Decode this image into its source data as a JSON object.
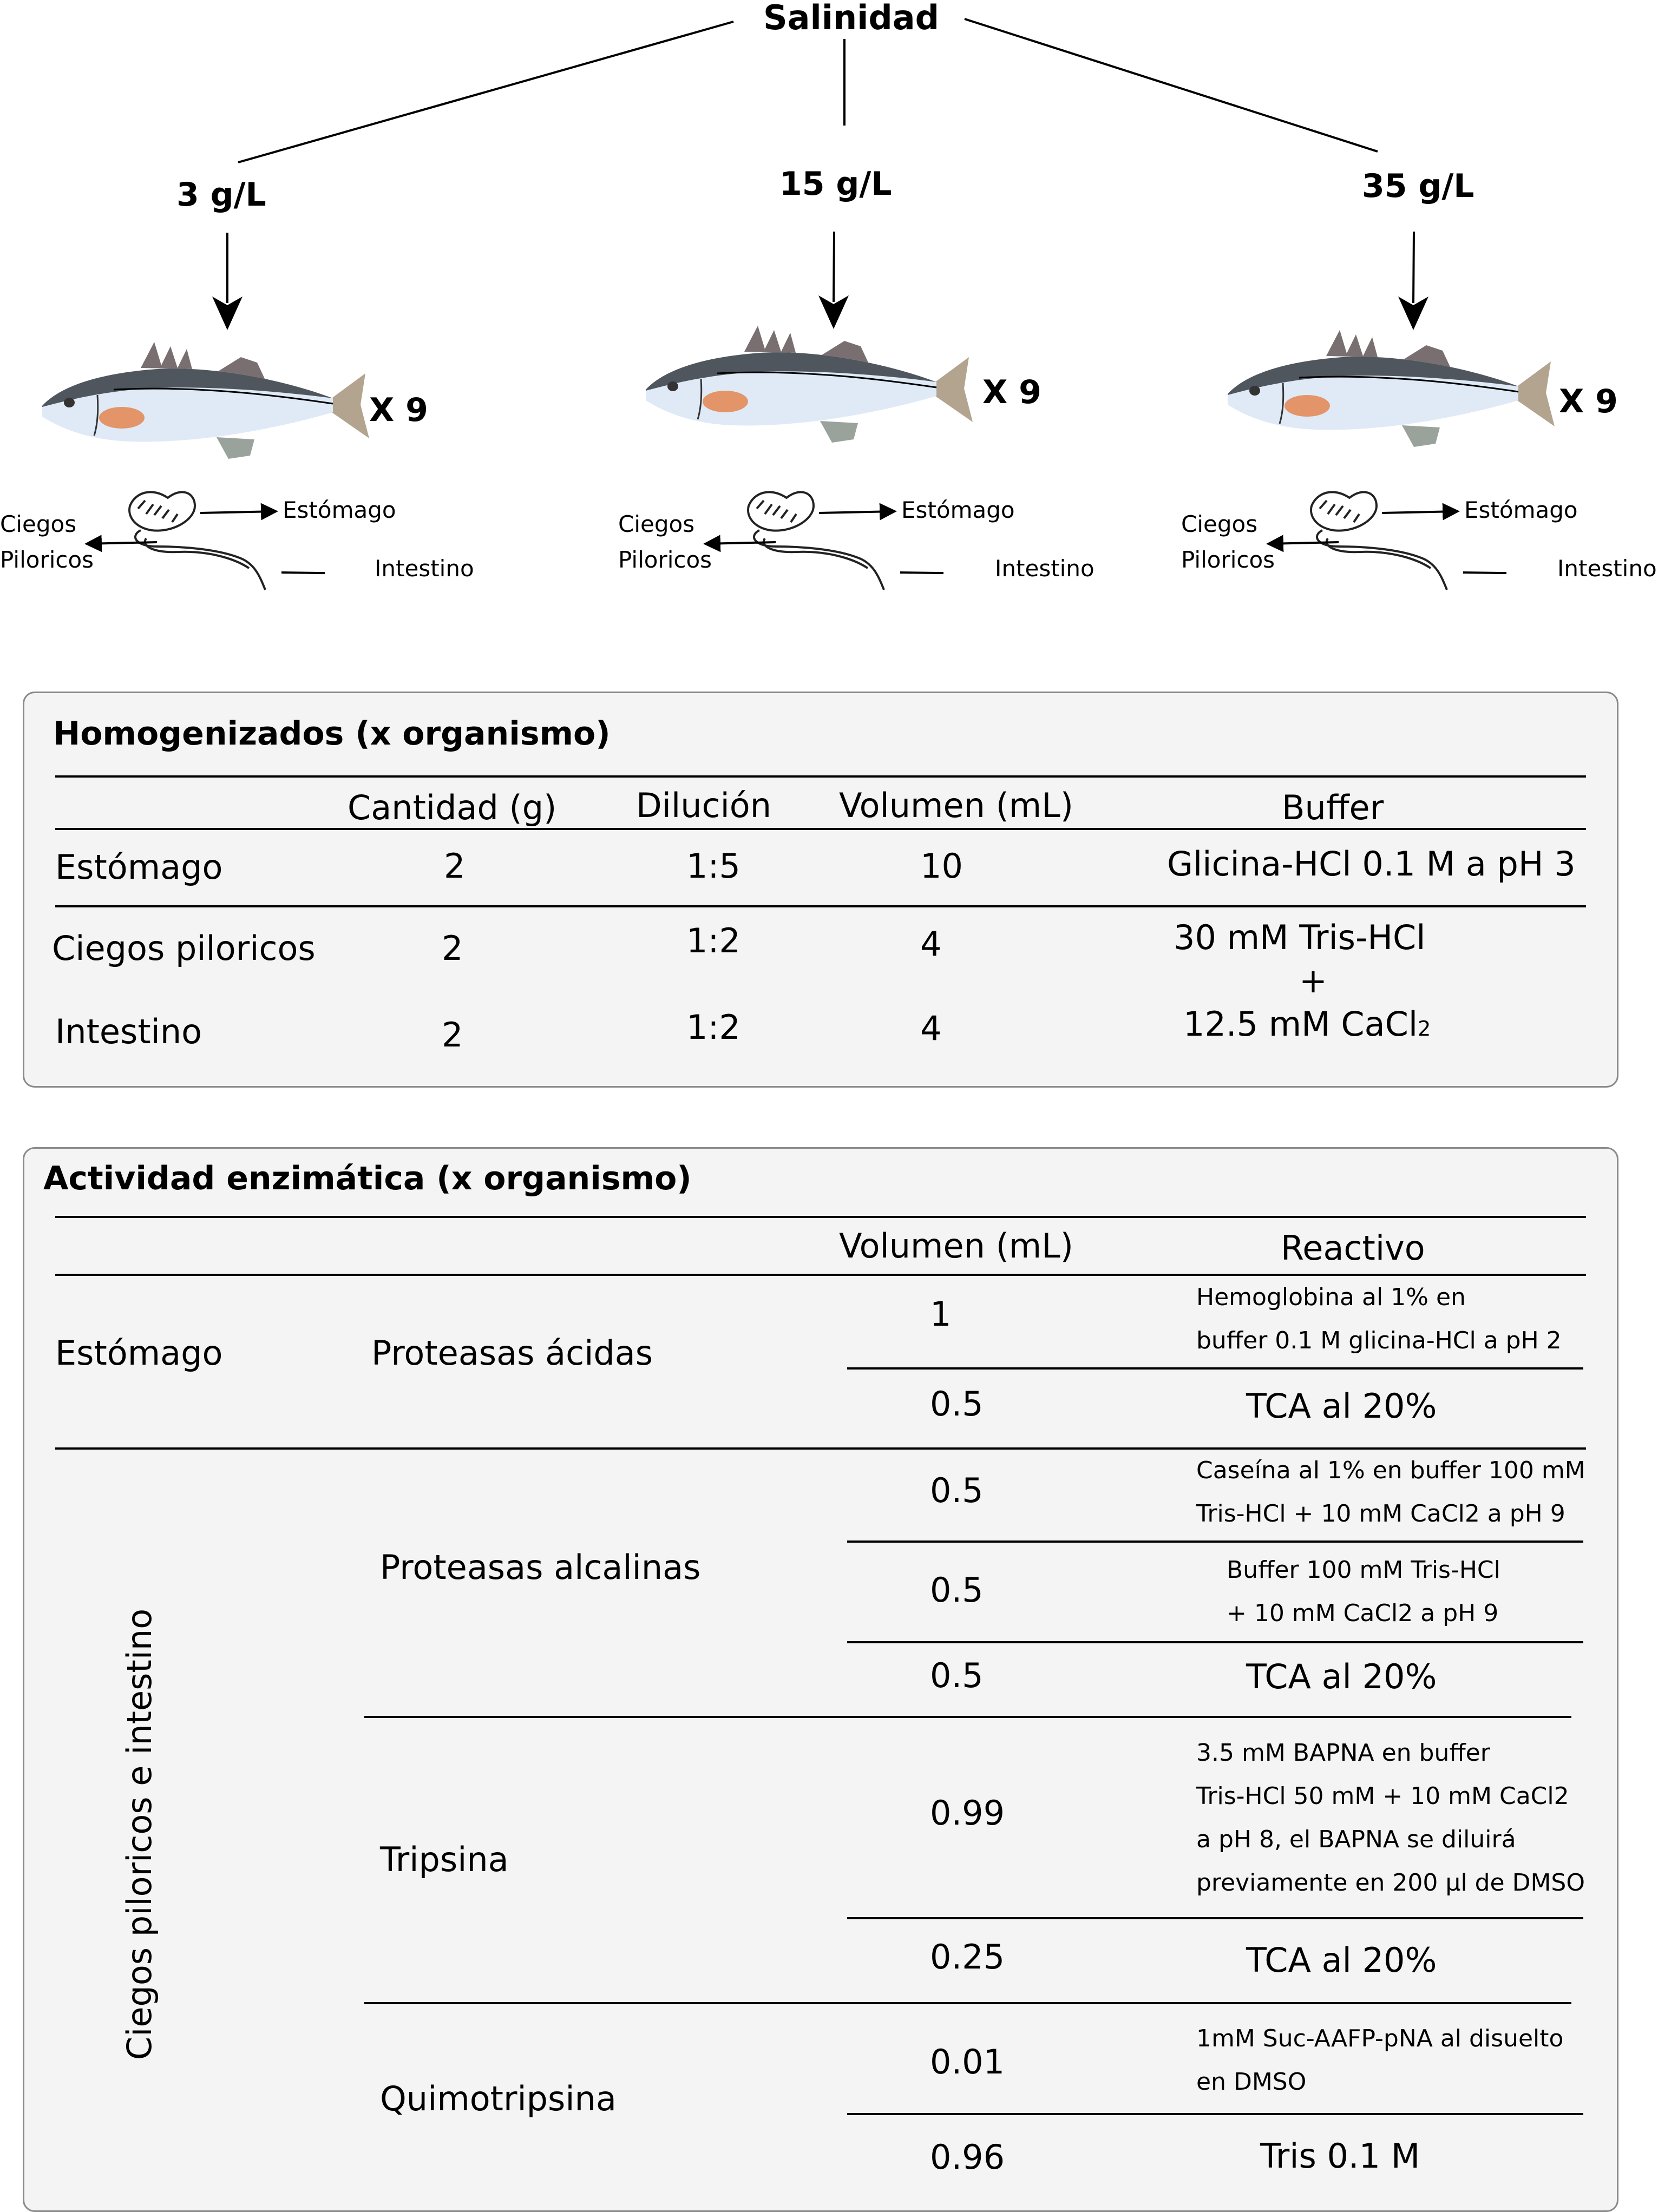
{
  "header": {
    "root": "Salinidad",
    "salinities": [
      "3 g/L",
      "15 g/L",
      "35 g/L"
    ],
    "replicates": "X 9"
  },
  "organ_labels": {
    "pyloric_line1": "Ciegos",
    "pyloric_line2": "Piloricos",
    "stomach": "Estómago",
    "intestine": "Intestino"
  },
  "homogenates": {
    "title": "Homogenizados (x organismo)",
    "columns": [
      "Cantidad (g)",
      "Dilución",
      "Volumen (mL)",
      "Buffer"
    ],
    "rows": [
      {
        "organ": "Estómago",
        "amount": "2",
        "dilution": "1:5",
        "volume": "10",
        "buffer": "Glicina-HCl 0.1 M a pH 3"
      },
      {
        "organ": "Ciegos piloricos",
        "amount": "2",
        "dilution": "1:2",
        "volume": "4"
      },
      {
        "organ": "Intestino",
        "amount": "2",
        "dilution": "1:2",
        "volume": "4"
      }
    ],
    "shared_buffer": {
      "line1": "30 mM Tris-HCl",
      "line2": "+",
      "line3": "12.5 mM CaCl",
      "subscript": "2"
    }
  },
  "activity": {
    "title": "Actividad enzimática (x organismo)",
    "columns": [
      "Volumen (mL)",
      "Reactivo"
    ],
    "stomach": {
      "organ": "Estómago",
      "enzyme": "Proteasas ácidas",
      "steps": [
        {
          "volume": "1",
          "reagent": [
            "Hemoglobina al 1% en",
            "buffer 0.1 M glicina-HCl a pH 2"
          ]
        },
        {
          "volume": "0.5",
          "reagent": [
            "TCA al 20%"
          ]
        }
      ]
    },
    "pyloric_intestine": {
      "organ": "Ciegos piloricos e intestino",
      "groups": [
        {
          "enzyme": "Proteasas alcalinas",
          "steps": [
            {
              "volume": "0.5",
              "reagent": [
                "Caseína al 1% en buffer 100 mM",
                "Tris-HCl + 10 mM CaCl2 a pH 9"
              ]
            },
            {
              "volume": "0.5",
              "reagent": [
                "Buffer 100 mM Tris-HCl",
                "+ 10 mM CaCl2 a pH 9"
              ]
            },
            {
              "volume": "0.5",
              "reagent": [
                "TCA al 20%"
              ]
            }
          ]
        },
        {
          "enzyme": "Tripsina",
          "steps": [
            {
              "volume": "0.99",
              "reagent": [
                "3.5 mM BAPNA en buffer",
                "Tris-HCl 50 mM + 10 mM CaCl2",
                "a pH 8, el BAPNA se diluirá",
                "previamente en 200 µl de DMSO"
              ]
            },
            {
              "volume": "0.25",
              "reagent": [
                "TCA al 20%"
              ]
            }
          ]
        },
        {
          "enzyme": "Quimotripsina",
          "steps": [
            {
              "volume": "0.01",
              "reagent": [
                "1mM Suc-AAFP-pNA al disuelto",
                "en DMSO"
              ]
            },
            {
              "volume": "0.96",
              "reagent": [
                "Tris 0.1 M"
              ]
            }
          ]
        }
      ]
    }
  },
  "colors": {
    "fish_back": "#50565e",
    "fish_belly": "#dfeaf6",
    "fish_fin": "#7a6f70",
    "fish_tail": "#b2a48f",
    "organ_spot": "#e39468",
    "panel_bg": "#f4f4f4",
    "panel_border": "#8a8a8a"
  }
}
